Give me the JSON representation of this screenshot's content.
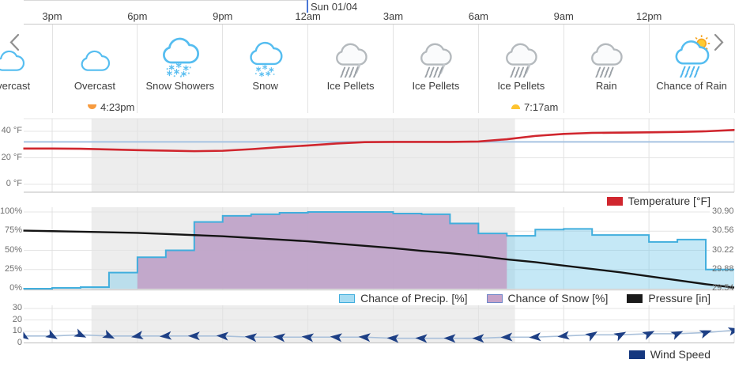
{
  "header": {
    "date_label": "Sun 01/04",
    "ticks": [
      "3pm",
      "6pm",
      "9pm",
      "12am",
      "3am",
      "6am",
      "9am",
      "12pm"
    ],
    "prev": "previous",
    "next": "next"
  },
  "conditions": [
    {
      "icon": "overcast",
      "label": "Overcast"
    },
    {
      "icon": "overcast",
      "label": "Overcast"
    },
    {
      "icon": "snow-showers",
      "label": "Snow Showers"
    },
    {
      "icon": "snow",
      "label": "Snow"
    },
    {
      "icon": "ice-pellets",
      "label": "Ice Pellets"
    },
    {
      "icon": "ice-pellets",
      "label": "Ice Pellets"
    },
    {
      "icon": "ice-pellets",
      "label": "Ice Pellets"
    },
    {
      "icon": "rain",
      "label": "Rain"
    },
    {
      "icon": "chance-rain",
      "label": "Chance of Rain"
    }
  ],
  "sun_events": {
    "sunset_time": "4:23pm",
    "sunrise_time": "7:17am"
  },
  "axes": {
    "temperature": [
      "40 °F",
      "20 °F",
      "0 °F"
    ],
    "percent": [
      "100%",
      "75%",
      "50%",
      "25%",
      "0%"
    ],
    "pressure": [
      "30.90",
      "30.56",
      "30.22",
      "29.88",
      "29.54"
    ],
    "wind": [
      "30",
      "20",
      "10",
      "0"
    ]
  },
  "legends": {
    "temperature": {
      "label": "Temperature [°F]",
      "color": "#d0262e"
    },
    "precip": {
      "label": "Chance of Precip. [%]",
      "fill": "#a7dcf2",
      "border": "#41aedd"
    },
    "snow": {
      "label": "Chance of Snow [%]",
      "fill": "#c6a2c8",
      "border": "#6e87c8"
    },
    "pressure": {
      "label": "Pressure [in]",
      "color": "#1a1a1a"
    },
    "wind": {
      "label": "Wind Speed",
      "color": "#16387f"
    }
  },
  "chart_data": [
    {
      "type": "line",
      "name": "Temperature",
      "unit": "°F",
      "x_axis": "hour of day (13 = 1pm Sat ... 39 = 3pm Sun)",
      "x_hours": [
        13,
        14,
        15,
        16,
        17,
        18,
        19,
        20,
        21,
        22,
        23,
        24,
        25,
        26,
        27,
        28,
        29,
        30,
        31,
        32,
        33,
        34,
        35,
        36,
        37,
        38,
        39
      ],
      "values": [
        27.2,
        27,
        27,
        26.8,
        26.3,
        25.8,
        25.4,
        25,
        25.3,
        26.5,
        28,
        29.3,
        30.8,
        31.8,
        32,
        32,
        32,
        32.3,
        34,
        36.5,
        38,
        38.8,
        39,
        39.2,
        39.5,
        40,
        41
      ],
      "freezing_line": 32,
      "yticks": [
        0,
        20,
        40
      ],
      "ylim": [
        -6,
        46
      ],
      "color": "#d0262e"
    },
    {
      "type": "mixed",
      "left_axis": {
        "unit": "%",
        "ticks": [
          0,
          25,
          50,
          75,
          100
        ]
      },
      "right_axis": {
        "unit": "in",
        "ticks": [
          29.54,
          29.88,
          30.22,
          30.56,
          30.9
        ]
      },
      "series": [
        {
          "name": "Chance of Precip. [%]",
          "type": "step-area",
          "start_hour": 13,
          "step_hours": 1,
          "values": [
            0,
            0,
            1,
            2,
            21,
            41,
            50,
            87,
            95,
            97,
            99,
            100,
            100,
            100,
            98,
            97,
            85,
            72,
            69,
            77,
            78,
            70,
            70,
            61,
            64,
            25
          ],
          "fill": "#7fccec",
          "line": "#41aedd"
        },
        {
          "name": "Chance of Snow [%]",
          "type": "step-area",
          "start_hour": 18,
          "step_hours": 1,
          "values": [
            41,
            50,
            87,
            95,
            97,
            99,
            100,
            100,
            100,
            98,
            97,
            85,
            72
          ],
          "fill": "#c3a0c6"
        },
        {
          "name": "Pressure [in]",
          "type": "line",
          "start_hour": 13,
          "values": [
            30.57,
            30.57,
            30.56,
            30.55,
            30.54,
            30.53,
            30.51,
            30.49,
            30.47,
            30.44,
            30.41,
            30.38,
            30.34,
            30.3,
            30.26,
            30.21,
            30.17,
            30.12,
            30.06,
            30.01,
            29.95,
            29.89,
            29.83,
            29.76,
            29.69,
            29.62,
            29.56
          ],
          "color": "#141414"
        }
      ]
    },
    {
      "type": "line",
      "name": "Wind Speed",
      "start_hour": 13,
      "values": [
        5,
        6,
        6,
        7,
        6,
        6,
        6,
        6,
        6,
        5,
        5,
        5,
        5,
        5,
        4,
        4,
        4,
        4,
        5,
        5,
        6,
        7,
        7,
        8,
        8,
        9,
        11
      ],
      "directions_deg": [
        20,
        35,
        30,
        25,
        25,
        170,
        175,
        180,
        183,
        185,
        186,
        186,
        185,
        184,
        183,
        182,
        181,
        180,
        178,
        176,
        173,
        -32,
        -28,
        -26,
        -24,
        -20,
        -15
      ],
      "yticks": [
        0,
        10,
        20,
        30
      ],
      "ylim": [
        0,
        30
      ],
      "color": "#1d3f85"
    }
  ]
}
